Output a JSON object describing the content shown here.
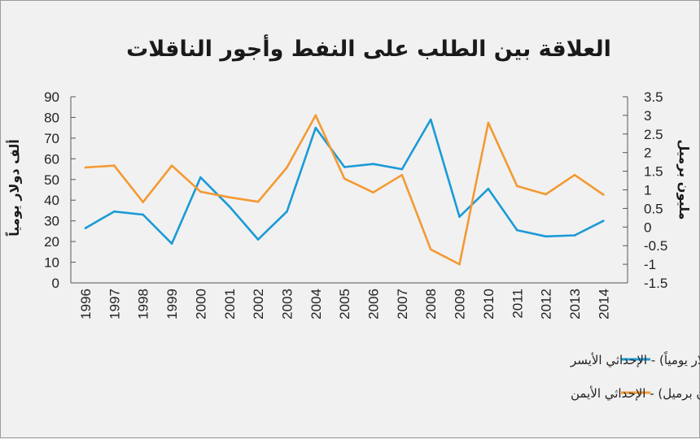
{
  "chart_data": {
    "type": "line",
    "title": "العلاقة بين الطلب على النفط وأجور الناقلات",
    "x": [
      "1996",
      "1997",
      "1998",
      "1999",
      "2000",
      "2001",
      "2002",
      "2003",
      "2004",
      "2005",
      "2006",
      "2007",
      "2008",
      "2009",
      "2010",
      "2011",
      "2012",
      "2013",
      "2014"
    ],
    "ylabel_left": "ألف دولار يومياً",
    "ylabel_right": "مليون برميل",
    "ylim_left": [
      0,
      90
    ],
    "ylim_right": [
      -1.5,
      3.5
    ],
    "yticks_left": [
      "0",
      "10",
      "20",
      "30",
      "40",
      "50",
      "60",
      "70",
      "80",
      "90"
    ],
    "yticks_right": [
      "-1.5",
      "-1",
      "-0.5",
      "0",
      "0.5",
      "1",
      "1.5",
      "2",
      "2.5",
      "3",
      "3.5"
    ],
    "series": [
      {
        "name": "معدل أجرة ناقلة VLCC (ألف دولار يومياً) - الإحداثي الأيسر",
        "axis": "left",
        "color": "#1b9ad6",
        "values": [
          26.5,
          34.5,
          33,
          19,
          51,
          37,
          21,
          34.5,
          75,
          56,
          57.5,
          55,
          79,
          32,
          45.5,
          25.5,
          22.5,
          23,
          30
        ]
      },
      {
        "name": "معدل نمو الطلب على النفط (مليون برميل) - الإحداثي الأيمن",
        "axis": "right",
        "color": "#f39a32",
        "values": [
          1.6,
          1.65,
          0.67,
          1.65,
          0.95,
          0.8,
          0.68,
          1.6,
          3.0,
          1.3,
          0.93,
          1.4,
          -0.6,
          -1.0,
          2.8,
          1.1,
          0.88,
          1.4,
          0.87
        ]
      }
    ]
  }
}
